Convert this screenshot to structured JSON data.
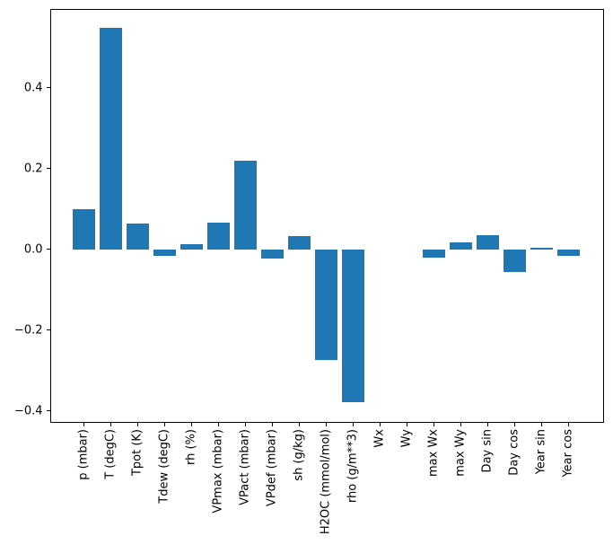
{
  "figure": {
    "background": "#ffffff",
    "axes_frame_color": "#000000",
    "text_color": "#000000"
  },
  "chart_data": {
    "type": "bar",
    "title": "",
    "xlabel": "",
    "ylabel": "",
    "grid": false,
    "legend": null,
    "bar_color": "#1f77b4",
    "categories": [
      "p (mbar)",
      "T (degC)",
      "Tpot (K)",
      "Tdew (degC)",
      "rh (%)",
      "VPmax (mbar)",
      "VPact (mbar)",
      "VPdef (mbar)",
      "sh (g/kg)",
      "H2OC (mmol/mol)",
      "rho (g/m**3)",
      "Wx",
      "Wy",
      "max Wx",
      "max Wy",
      "Day sin",
      "Day cos",
      "Year sin",
      "Year cos"
    ],
    "values": [
      0.099,
      0.549,
      0.064,
      -0.016,
      0.012,
      0.067,
      0.219,
      -0.022,
      0.033,
      -0.273,
      -0.378,
      0.0,
      0.0,
      -0.021,
      0.017,
      0.035,
      -0.057,
      0.005,
      -0.016
    ],
    "xticklabel_rotation_deg": 90,
    "ylim": [
      -0.4285,
      0.5955
    ],
    "yticks": [
      {
        "value": 0.4,
        "label": "0.4"
      },
      {
        "value": 0.2,
        "label": "0.2"
      },
      {
        "value": 0.0,
        "label": "0.0"
      },
      {
        "value": -0.2,
        "label": "−0.2"
      },
      {
        "value": -0.4,
        "label": "−0.4"
      }
    ]
  }
}
